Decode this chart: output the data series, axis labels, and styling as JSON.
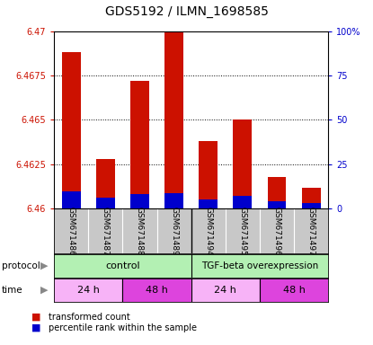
{
  "title": "GDS5192 / ILMN_1698585",
  "samples": [
    "GSM671486",
    "GSM671487",
    "GSM671488",
    "GSM671489",
    "GSM671494",
    "GSM671495",
    "GSM671496",
    "GSM671497"
  ],
  "red_values": [
    6.4688,
    6.4628,
    6.4672,
    6.47,
    6.4638,
    6.465,
    6.4618,
    6.4612
  ],
  "blue_values": [
    10,
    6,
    8,
    9,
    5,
    7,
    4,
    3
  ],
  "base": 6.46,
  "ylim_left": [
    6.46,
    6.47
  ],
  "ylim_right": [
    0,
    100
  ],
  "yticks_left": [
    6.46,
    6.4625,
    6.465,
    6.4675,
    6.47
  ],
  "ytick_labels_left": [
    "6.46",
    "6.4625",
    "6.465",
    "6.4675",
    "6.47"
  ],
  "yticks_right": [
    0,
    25,
    50,
    75,
    100
  ],
  "ytick_labels_right": [
    "0",
    "25",
    "50",
    "75",
    "100%"
  ],
  "bar_color_red": "#cc1100",
  "bar_color_blue": "#0000cc",
  "bar_width": 0.55,
  "label_color_left": "#cc1100",
  "label_color_right": "#0000cc",
  "protocol_left_label": "control",
  "protocol_right_label": "TGF-beta overexpression",
  "protocol_left_color": "#b3f0b3",
  "protocol_right_color": "#b3f0b3",
  "time_labels": [
    "24 h",
    "48 h",
    "24 h",
    "48 h"
  ],
  "time_color_light": "#f7b3f7",
  "time_color_dark": "#dd44dd",
  "legend_red_label": "transformed count",
  "legend_blue_label": "percentile rank within the sample",
  "title_fontsize": 10
}
